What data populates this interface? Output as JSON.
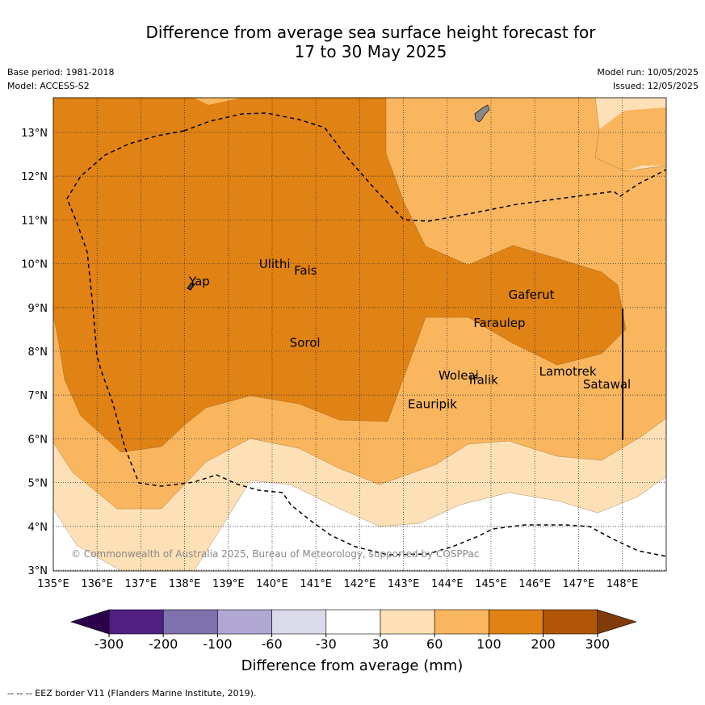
{
  "title_line1": "Difference from average sea surface height forecast for",
  "title_line2": "17 to 30 May 2025",
  "base_period": "Base period: 1981-2018",
  "model": "Model: ACCESS-S2",
  "model_run": "Model run: 10/05/2025",
  "issued": "Issued: 12/05/2025",
  "copyright": "© Commonwealth of Australia 2025, Bureau of Meteorology, supported by COSPPac",
  "footer": "--  --  -- EEZ border V11 (Flanders Marine Institute, 2019).",
  "lon_ticks": [
    "135°E",
    "136°E",
    "137°E",
    "138°E",
    "139°E",
    "140°E",
    "141°E",
    "142°E",
    "143°E",
    "144°E",
    "145°E",
    "146°E",
    "147°E",
    "148°E"
  ],
  "lat_ticks": [
    "3°N",
    "4°N",
    "5°N",
    "6°N",
    "7°N",
    "8°N",
    "9°N",
    "10°N",
    "11°N",
    "12°N",
    "13°N"
  ],
  "places": [
    {
      "name": "Ulithi",
      "lon": 139.7,
      "lat": 9.9
    },
    {
      "name": "Fais",
      "lon": 140.5,
      "lat": 9.75
    },
    {
      "name": "Yap",
      "lon": 138.1,
      "lat": 9.5
    },
    {
      "name": "Gaferut",
      "lon": 145.4,
      "lat": 9.2
    },
    {
      "name": "Faraulep",
      "lon": 144.6,
      "lat": 8.55
    },
    {
      "name": "Sorol",
      "lon": 140.4,
      "lat": 8.1
    },
    {
      "name": "Lamotrek",
      "lon": 146.1,
      "lat": 7.45
    },
    {
      "name": "Woleai",
      "lon": 143.8,
      "lat": 7.35
    },
    {
      "name": "Ifalik",
      "lon": 144.5,
      "lat": 7.25
    },
    {
      "name": "Satawal",
      "lon": 147.1,
      "lat": 7.15
    },
    {
      "name": "Eauripik",
      "lon": 143.1,
      "lat": 6.7
    }
  ],
  "colorbar": {
    "label": "Difference from average (mm)",
    "ticks": [
      "-300",
      "-200",
      "-100",
      "-60",
      "-30",
      "30",
      "60",
      "100",
      "200",
      "300"
    ],
    "colors": [
      "#521f83",
      "#7e71ad",
      "#b0a8d2",
      "#dadaeb",
      "#ffffff",
      "#fee0b6",
      "#f9b65f",
      "#e08214",
      "#b15607"
    ],
    "under_color": "#2d004b",
    "over_color": "#7f3b08"
  }
}
